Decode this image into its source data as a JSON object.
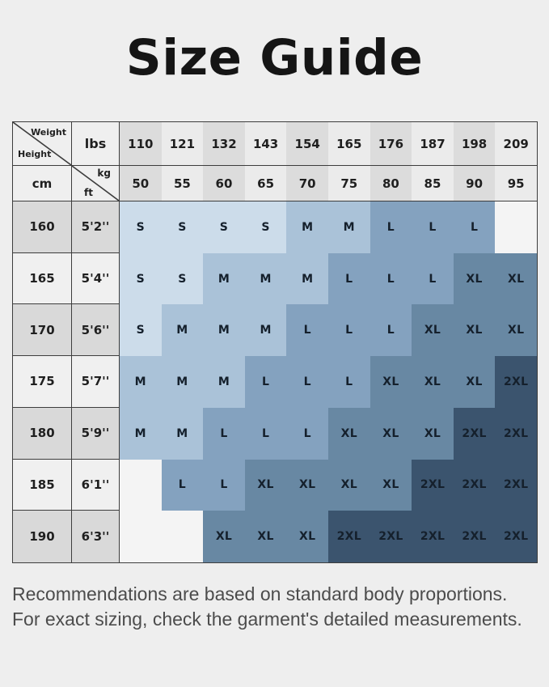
{
  "page": {
    "title": "Size Guide",
    "background_color": "#eeeeee"
  },
  "footer": {
    "line1": "Recommendations are based on standard body proportions.",
    "line2": "For exact sizing, check the garment's detailed measurements."
  },
  "chart_data": {
    "type": "table",
    "title": "Size Guide",
    "corner": {
      "top_right_label": "Weight",
      "bottom_left_label": "Height",
      "lbs_label": "lbs",
      "cm_label": "cm",
      "kg_label": "kg",
      "ft_label": "ft"
    },
    "weight_lbs": [
      "110",
      "121",
      "132",
      "143",
      "154",
      "165",
      "176",
      "187",
      "198",
      "209"
    ],
    "weight_kg": [
      "50",
      "55",
      "60",
      "65",
      "70",
      "75",
      "80",
      "85",
      "90",
      "95"
    ],
    "rows": [
      {
        "cm": "160",
        "ft": "5'2''",
        "sizes": [
          "S",
          "S",
          "S",
          "S",
          "M",
          "M",
          "L",
          "L",
          "L",
          ""
        ]
      },
      {
        "cm": "165",
        "ft": "5'4''",
        "sizes": [
          "S",
          "S",
          "M",
          "M",
          "M",
          "L",
          "L",
          "L",
          "XL",
          "XL"
        ]
      },
      {
        "cm": "170",
        "ft": "5'6''",
        "sizes": [
          "S",
          "M",
          "M",
          "M",
          "L",
          "L",
          "L",
          "XL",
          "XL",
          "XL"
        ]
      },
      {
        "cm": "175",
        "ft": "5'7''",
        "sizes": [
          "M",
          "M",
          "M",
          "L",
          "L",
          "L",
          "XL",
          "XL",
          "XL",
          "2XL"
        ]
      },
      {
        "cm": "180",
        "ft": "5'9''",
        "sizes": [
          "M",
          "M",
          "L",
          "L",
          "L",
          "XL",
          "XL",
          "XL",
          "2XL",
          "2XL"
        ]
      },
      {
        "cm": "185",
        "ft": "6'1''",
        "sizes": [
          "",
          "L",
          "L",
          "XL",
          "XL",
          "XL",
          "XL",
          "2XL",
          "2XL",
          "2XL"
        ]
      },
      {
        "cm": "190",
        "ft": "6'3''",
        "sizes": [
          "",
          "",
          "XL",
          "XL",
          "XL",
          "2XL",
          "2XL",
          "2XL",
          "2XL",
          "2XL"
        ]
      }
    ],
    "size_colors": {
      "S": "#ccdcea",
      "M": "#aac2d8",
      "L": "#84a2bf",
      "XL": "#6888a3",
      "2XL": "#3b546e",
      "empty": "#f4f4f4"
    },
    "header_column_colors": [
      "#dcdcdc",
      "#ebebeb"
    ],
    "row_label_colors": [
      "#d9d9d9",
      "#f0f0f0"
    ],
    "border_color": "#3d3d3d"
  }
}
